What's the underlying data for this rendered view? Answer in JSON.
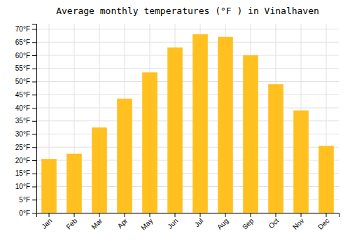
{
  "chart_data": {
    "type": "bar",
    "title": "Average monthly temperatures (°F ) in Vinalhaven",
    "categories": [
      "Jan",
      "Feb",
      "Mar",
      "Apr",
      "May",
      "Jun",
      "Jul",
      "Aug",
      "Sep",
      "Oct",
      "Nov",
      "Dec"
    ],
    "values": [
      20.5,
      22.5,
      32.5,
      43.5,
      53.5,
      63.0,
      68.0,
      67.0,
      60.0,
      49.0,
      39.0,
      25.5
    ],
    "color": "#FFC020",
    "ylim": [
      0,
      72
    ],
    "yticks": [
      {
        "value": 0,
        "label": "0°F"
      },
      {
        "value": 5,
        "label": "5°F"
      },
      {
        "value": 10,
        "label": "10°F"
      },
      {
        "value": 15,
        "label": "15°F"
      },
      {
        "value": 20,
        "label": "20°F"
      },
      {
        "value": 25,
        "label": "25°F"
      },
      {
        "value": 30,
        "label": "30°F"
      },
      {
        "value": 35,
        "label": "35°F"
      },
      {
        "value": 40,
        "label": "40°F"
      },
      {
        "value": 45,
        "label": "45°F"
      },
      {
        "value": 50,
        "label": "50°F"
      },
      {
        "value": 55,
        "label": "55°F"
      },
      {
        "value": 60,
        "label": "60°F"
      },
      {
        "value": 65,
        "label": "65°F"
      },
      {
        "value": 70,
        "label": "70°F"
      }
    ],
    "grid": true
  }
}
